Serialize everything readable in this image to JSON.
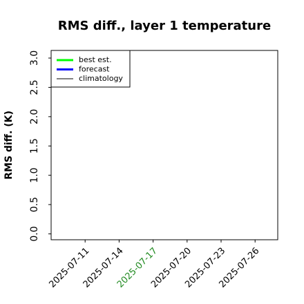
{
  "chart_data": {
    "type": "line",
    "title": "RMS diff., layer 1 temperature",
    "ylabel": "RMS diff. (K)",
    "x": [],
    "series": [
      {
        "name": "best est.",
        "color": "#00ff00",
        "linewidth": 3,
        "values": []
      },
      {
        "name": "forecast",
        "color": "#0000ff",
        "linewidth": 3,
        "values": []
      },
      {
        "name": "climatology",
        "color": "#000000",
        "linewidth": 1,
        "values": []
      }
    ],
    "xlim": [
      "2025-07-08",
      "2025-07-28"
    ],
    "xticks": [
      "2025-07-11",
      "2025-07-14",
      "2025-07-17",
      "2025-07-20",
      "2025-07-23",
      "2025-07-26"
    ],
    "xtick_colors": [
      "#000000",
      "#000000",
      "#228b22",
      "#000000",
      "#000000",
      "#000000"
    ],
    "ylim": [
      -0.1,
      3.13
    ],
    "yticks": [
      {
        "value": 0,
        "label": "0.0"
      },
      {
        "value": 0.5,
        "label": "0.5"
      },
      {
        "value": 1,
        "label": "1.0"
      },
      {
        "value": 1.5,
        "label": "1.5"
      },
      {
        "value": 2,
        "label": "2.0"
      },
      {
        "value": 2.5,
        "label": "2.5"
      },
      {
        "value": 3,
        "label": "3.0"
      }
    ],
    "legend": "upper left",
    "grid": false
  }
}
